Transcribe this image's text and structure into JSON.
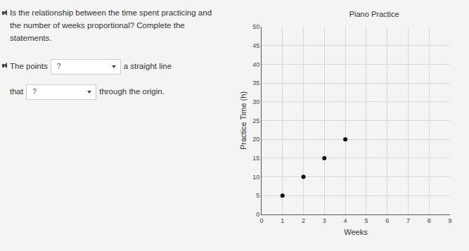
{
  "question": {
    "prompt": "Is the relationship between the time spent practicing and the number of weeks proportional? Complete the statements.",
    "statement_1": [
      "The points",
      "?",
      "a straight line"
    ],
    "statement_2": [
      "that",
      "?",
      "through the origin."
    ]
  },
  "chart_data": {
    "type": "scatter",
    "title": "Piano Practice",
    "x_label": "Weeks",
    "y_label": "Practice Time (h)",
    "x": [
      1,
      2,
      3,
      4
    ],
    "values": [
      5,
      10,
      15,
      20
    ],
    "color": "#111111",
    "marker": "circle",
    "xlim": [
      0,
      9
    ],
    "xticks": [
      0,
      1,
      2,
      3,
      4,
      5,
      6,
      7,
      8,
      9
    ],
    "ylim": [
      0,
      50
    ],
    "yticks": [
      0,
      5,
      10,
      15,
      20,
      25,
      30,
      35,
      40,
      45,
      50
    ],
    "grid": true
  }
}
